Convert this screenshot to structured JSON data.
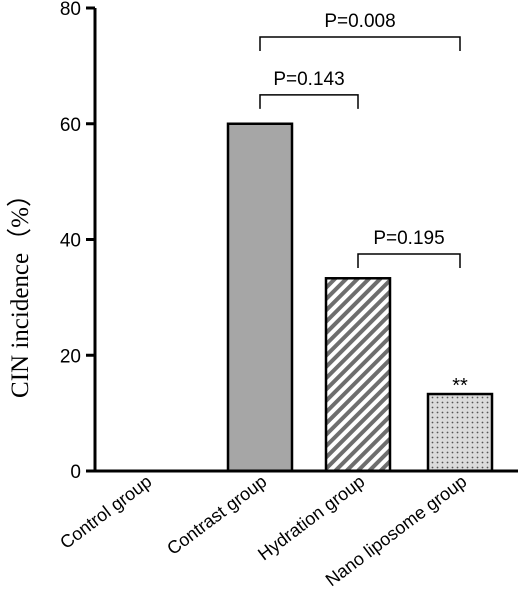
{
  "chart_data": {
    "type": "bar",
    "title": "",
    "xlabel": "",
    "ylabel": "CIN incidence（%）",
    "ylim": [
      0,
      80
    ],
    "yticks": [
      0,
      20,
      40,
      60,
      80
    ],
    "grid": false,
    "categories": [
      "Control group",
      "Contrast group",
      "Hydration group",
      "Nano liposome group"
    ],
    "values": [
      0,
      60,
      33.3,
      13.3
    ],
    "bar_styles": [
      "none",
      "solid-gray",
      "diagonal-hatch",
      "dotted"
    ],
    "bar_colors": [
      "#ffffff",
      "#a6a6a6",
      "#707070",
      "#d9d9d9"
    ],
    "annotations": [
      {
        "category": "Nano liposome group",
        "text": "**"
      }
    ],
    "comparisons": [
      {
        "from": "Contrast group",
        "to": "Nano liposome group",
        "label": "P=0.008",
        "level": 75
      },
      {
        "from": "Contrast group",
        "to": "Hydration group",
        "label": "P=0.143",
        "level": 65
      },
      {
        "from": "Hydration group",
        "to": "Nano liposome group",
        "label": "P=0.195",
        "level": 37.5
      }
    ]
  }
}
